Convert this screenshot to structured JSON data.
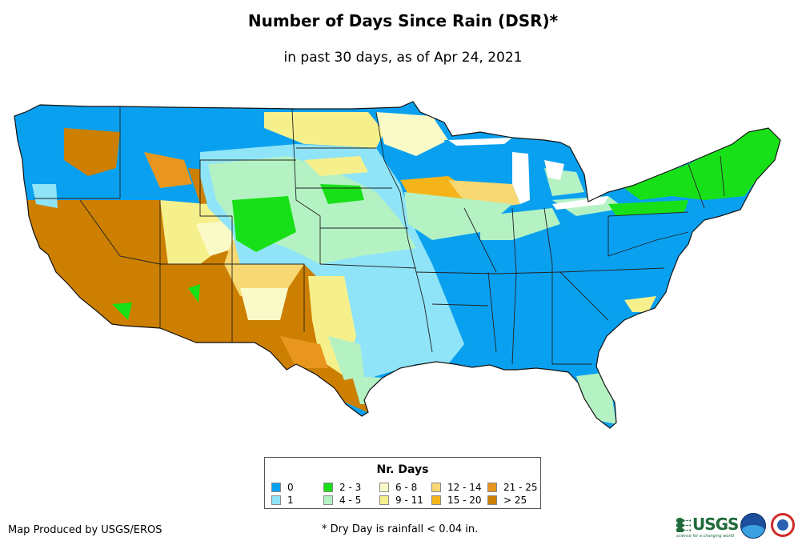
{
  "title": "Number of Days Since Rain (DSR)*",
  "subtitle": "in past 30 days, as of Apr 24, 2021",
  "legend": {
    "title": "Nr. Days",
    "items": [
      {
        "label": "0",
        "color": "#0aa0f0"
      },
      {
        "label": "1",
        "color": "#8fe4f7"
      },
      {
        "label": "2 - 3",
        "color": "#18e018"
      },
      {
        "label": "4 - 5",
        "color": "#b4f2c4"
      },
      {
        "label": "6 - 8",
        "color": "#fafac8"
      },
      {
        "label": "9 - 11",
        "color": "#f6f08c"
      },
      {
        "label": "12 - 14",
        "color": "#f7d873"
      },
      {
        "label": "15 - 20",
        "color": "#f5b51a"
      },
      {
        "label": "21 - 25",
        "color": "#e8961e"
      },
      {
        "label": "> 25",
        "color": "#cc7f00"
      }
    ]
  },
  "footer": {
    "credit": "Map Produced by USGS/EROS",
    "note": "* Dry Day is rainfall < 0.04 in."
  },
  "logos": {
    "usgs": "USGS",
    "usgs_tagline": "science for a changing world",
    "noaa_icon": "noaa-logo",
    "nws_icon": "nws-logo"
  }
}
